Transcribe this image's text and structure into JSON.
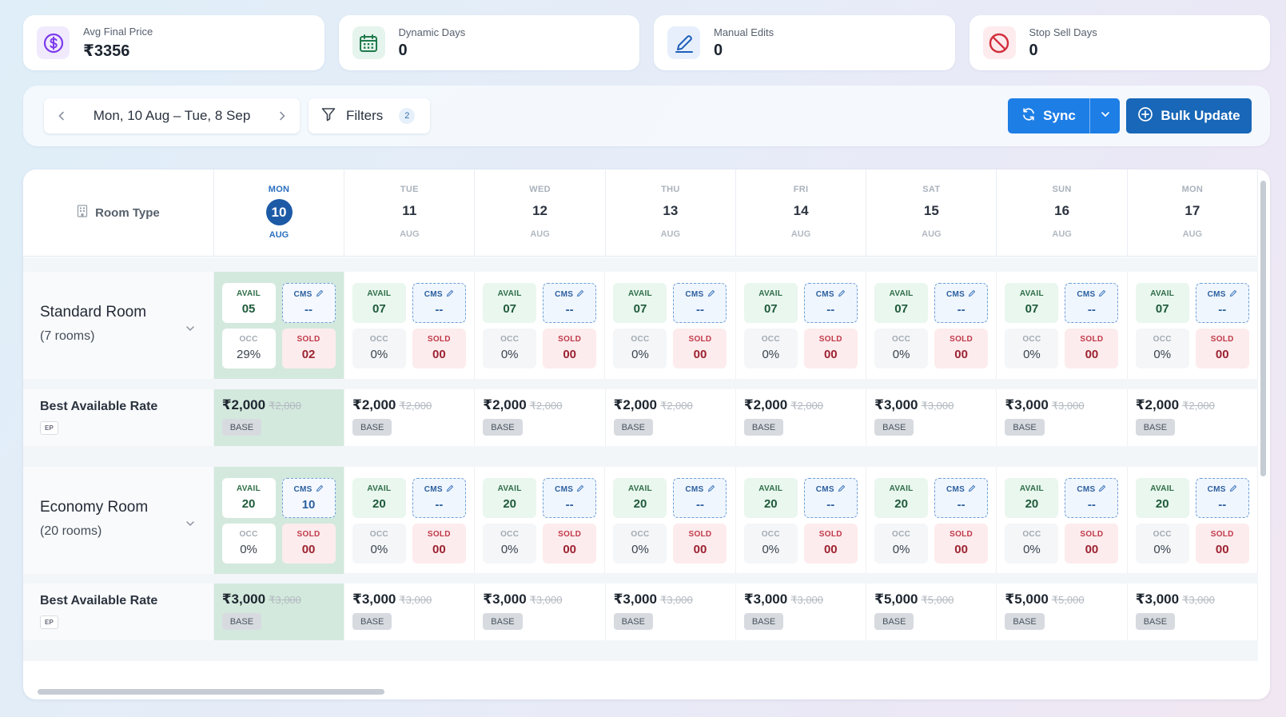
{
  "stats": [
    {
      "label": "Avg Final Price",
      "value": "₹3356",
      "icon": "dollar-circle-icon",
      "color": "#7c3aed"
    },
    {
      "label": "Dynamic Days",
      "value": "0",
      "icon": "calendar-icon",
      "color": "#1f7a4c"
    },
    {
      "label": "Manual Edits",
      "value": "0",
      "icon": "pencil-icon",
      "color": "#1d5fb8"
    },
    {
      "label": "Stop Sell Days",
      "value": "0",
      "icon": "ban-icon",
      "color": "#d22f3c"
    }
  ],
  "toolbar": {
    "date_range": "Mon, 10 Aug – Tue, 8 Sep",
    "filters_label": "Filters",
    "filters_count": "2",
    "sync_label": "Sync",
    "bulk_label": "Bulk Update"
  },
  "grid": {
    "room_type_label": "Room Type",
    "days": [
      {
        "dow": "MON",
        "num": "10",
        "mon": "AUG",
        "today": true
      },
      {
        "dow": "TUE",
        "num": "11",
        "mon": "AUG"
      },
      {
        "dow": "WED",
        "num": "12",
        "mon": "AUG"
      },
      {
        "dow": "THU",
        "num": "13",
        "mon": "AUG"
      },
      {
        "dow": "FRI",
        "num": "14",
        "mon": "AUG"
      },
      {
        "dow": "SAT",
        "num": "15",
        "mon": "AUG"
      },
      {
        "dow": "SUN",
        "num": "16",
        "mon": "AUG"
      },
      {
        "dow": "MON",
        "num": "17",
        "mon": "AUG"
      }
    ],
    "labels": {
      "avail": "AVAIL",
      "cms": "CMS",
      "occ": "OCC",
      "sold": "SOLD",
      "base": "BASE",
      "ep": "EP",
      "rate_name": "Best Available Rate"
    },
    "rooms": [
      {
        "name": "Standard Room",
        "count": "(7 rooms)",
        "cells": [
          {
            "avail": "05",
            "cms": "--",
            "occ": "29%",
            "sold": "02"
          },
          {
            "avail": "07",
            "cms": "--",
            "occ": "0%",
            "sold": "00"
          },
          {
            "avail": "07",
            "cms": "--",
            "occ": "0%",
            "sold": "00"
          },
          {
            "avail": "07",
            "cms": "--",
            "occ": "0%",
            "sold": "00"
          },
          {
            "avail": "07",
            "cms": "--",
            "occ": "0%",
            "sold": "00"
          },
          {
            "avail": "07",
            "cms": "--",
            "occ": "0%",
            "sold": "00"
          },
          {
            "avail": "07",
            "cms": "--",
            "occ": "0%",
            "sold": "00"
          },
          {
            "avail": "07",
            "cms": "--",
            "occ": "0%",
            "sold": "00"
          }
        ],
        "rates": [
          {
            "price": "₹2,000",
            "old": "₹2,000"
          },
          {
            "price": "₹2,000",
            "old": "₹2,000"
          },
          {
            "price": "₹2,000",
            "old": "₹2,000"
          },
          {
            "price": "₹2,000",
            "old": "₹2,000"
          },
          {
            "price": "₹2,000",
            "old": "₹2,000"
          },
          {
            "price": "₹3,000",
            "old": "₹3,000"
          },
          {
            "price": "₹3,000",
            "old": "₹3,000"
          },
          {
            "price": "₹2,000",
            "old": "₹2,000"
          }
        ]
      },
      {
        "name": "Economy Room",
        "count": "(20 rooms)",
        "cells": [
          {
            "avail": "20",
            "cms": "10",
            "occ": "0%",
            "sold": "00"
          },
          {
            "avail": "20",
            "cms": "--",
            "occ": "0%",
            "sold": "00"
          },
          {
            "avail": "20",
            "cms": "--",
            "occ": "0%",
            "sold": "00"
          },
          {
            "avail": "20",
            "cms": "--",
            "occ": "0%",
            "sold": "00"
          },
          {
            "avail": "20",
            "cms": "--",
            "occ": "0%",
            "sold": "00"
          },
          {
            "avail": "20",
            "cms": "--",
            "occ": "0%",
            "sold": "00"
          },
          {
            "avail": "20",
            "cms": "--",
            "occ": "0%",
            "sold": "00"
          },
          {
            "avail": "20",
            "cms": "--",
            "occ": "0%",
            "sold": "00"
          }
        ],
        "rates": [
          {
            "price": "₹3,000",
            "old": "₹3,000"
          },
          {
            "price": "₹3,000",
            "old": "₹3,000"
          },
          {
            "price": "₹3,000",
            "old": "₹3,000"
          },
          {
            "price": "₹3,000",
            "old": "₹3,000"
          },
          {
            "price": "₹3,000",
            "old": "₹3,000"
          },
          {
            "price": "₹5,000",
            "old": "₹5,000"
          },
          {
            "price": "₹5,000",
            "old": "₹5,000"
          },
          {
            "price": "₹3,000",
            "old": "₹3,000"
          }
        ]
      }
    ]
  }
}
